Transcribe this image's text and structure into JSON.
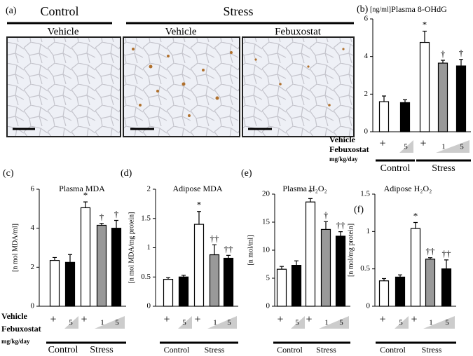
{
  "panel_a": {
    "label": "(a)",
    "groups": [
      "Control",
      "Stress"
    ],
    "conditions": [
      "Vehicle",
      "Vehicle",
      "Febuxostat"
    ]
  },
  "chart_data": [
    {
      "type": "bar",
      "label": "(b)",
      "title": "Plasma 8-OHdG",
      "ylabel": "[ng/ml]",
      "ylim": [
        0,
        6
      ],
      "yticks": [
        0,
        2,
        4,
        6
      ],
      "values": [
        1.6,
        1.55,
        4.75,
        3.65,
        3.5
      ],
      "errors": [
        0.3,
        0.15,
        0.6,
        0.15,
        0.35
      ],
      "colors": [
        "#ffffff",
        "#000000",
        "#ffffff",
        "#999999",
        "#000000"
      ],
      "annotations": [
        null,
        null,
        "*",
        "†",
        "†"
      ],
      "row_labels": [
        "Vehicle",
        "Febuxostat",
        "mg/kg/day"
      ],
      "vehicle_marks": [
        "+",
        "+"
      ],
      "dose_labels": [
        "5",
        "1",
        "5"
      ],
      "groups": [
        "Control",
        "Stress"
      ]
    },
    {
      "type": "bar",
      "label": "(c)",
      "title": "Plasma MDA",
      "ylabel": "[n mol MDA/ml]",
      "ylim": [
        0,
        6
      ],
      "yticks": [
        0,
        2,
        4,
        6
      ],
      "values": [
        2.35,
        2.25,
        5.05,
        4.15,
        4.0
      ],
      "errors": [
        0.15,
        0.4,
        0.3,
        0.1,
        0.4
      ],
      "colors": [
        "#ffffff",
        "#000000",
        "#ffffff",
        "#999999",
        "#000000"
      ],
      "annotations": [
        null,
        null,
        "*",
        "†",
        "†"
      ],
      "row_labels": [
        "Vehicle",
        "Febuxostat",
        "mg/kg/day"
      ],
      "vehicle_marks": [
        "+",
        "+"
      ],
      "dose_labels": [
        "5",
        "1",
        "5"
      ],
      "groups": [
        "Control",
        "Stress"
      ]
    },
    {
      "type": "bar",
      "label": "(d)",
      "title": "Adipose  MDA",
      "ylabel": "[n mol  MDA/mg  protein]",
      "ylim": [
        0,
        2
      ],
      "yticks": [
        0,
        0.5,
        1,
        1.5,
        2
      ],
      "values": [
        0.46,
        0.5,
        1.4,
        0.88,
        0.82
      ],
      "errors": [
        0.03,
        0.03,
        0.22,
        0.17,
        0.05
      ],
      "colors": [
        "#ffffff",
        "#000000",
        "#ffffff",
        "#999999",
        "#000000"
      ],
      "annotations": [
        null,
        null,
        "*",
        "††",
        "††"
      ],
      "vehicle_marks": [
        "+",
        "+"
      ],
      "dose_labels": [
        "5",
        "1",
        "5"
      ],
      "groups": [
        "Control",
        "Stress"
      ]
    },
    {
      "type": "bar",
      "label": "(e)",
      "title": "Plasma H₂O₂",
      "ylabel": "[n mol/ml]",
      "ylim": [
        0,
        20
      ],
      "yticks": [
        0,
        5,
        10,
        15,
        20
      ],
      "values": [
        6.6,
        7.3,
        18.6,
        13.7,
        12.5
      ],
      "errors": [
        0.5,
        0.8,
        0.6,
        1.4,
        0.8
      ],
      "colors": [
        "#ffffff",
        "#000000",
        "#ffffff",
        "#999999",
        "#000000"
      ],
      "annotations": [
        null,
        null,
        "*",
        "†",
        "††"
      ],
      "vehicle_marks": [
        "+",
        "+"
      ],
      "dose_labels": [
        "5",
        "1",
        "5"
      ],
      "groups": [
        "Control",
        "Stress"
      ]
    },
    {
      "type": "bar",
      "label": "(f)",
      "title": "Adipose  H₂O₂",
      "ylabel": "[n mol/mg  protein]",
      "ylim": [
        0,
        1.5
      ],
      "yticks": [
        0,
        0.5,
        1,
        1.5
      ],
      "values": [
        0.34,
        0.39,
        1.04,
        0.63,
        0.5
      ],
      "errors": [
        0.03,
        0.03,
        0.08,
        0.02,
        0.12
      ],
      "colors": [
        "#ffffff",
        "#000000",
        "#ffffff",
        "#999999",
        "#000000"
      ],
      "annotations": [
        null,
        null,
        "*",
        "††",
        "††"
      ],
      "vehicle_marks": [
        "+",
        "+"
      ],
      "dose_labels": [
        "5",
        "1",
        "5"
      ],
      "groups": [
        "Control",
        "Stress"
      ]
    }
  ]
}
